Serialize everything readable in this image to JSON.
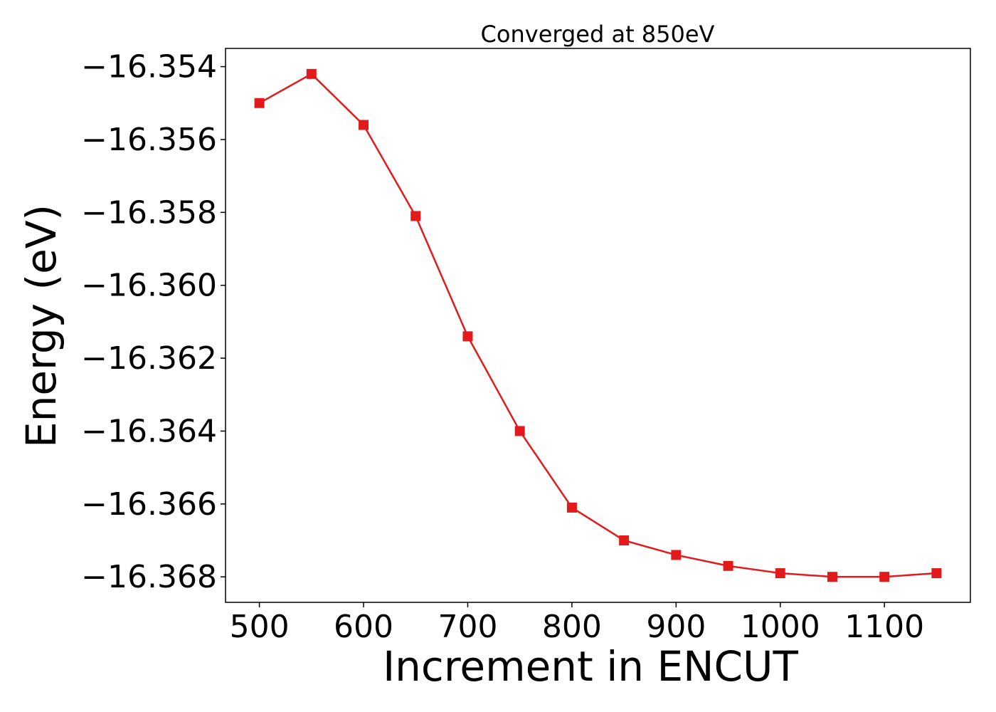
{
  "chart_data": {
    "type": "line",
    "title": "Converged at 850eV",
    "xlabel": "Increment in ENCUT",
    "ylabel": "Energy (eV)",
    "xlim": [
      467.5,
      1182.5
    ],
    "ylim": [
      -16.3687,
      -16.3535
    ],
    "xticks": [
      500,
      600,
      700,
      800,
      900,
      1000,
      1100
    ],
    "xtick_labels": [
      "500",
      "600",
      "700",
      "800",
      "900",
      "1000",
      "1100"
    ],
    "yticks": [
      -16.354,
      -16.356,
      -16.358,
      -16.36,
      -16.362,
      -16.364,
      -16.366,
      -16.368
    ],
    "ytick_labels": [
      "−16.354",
      "−16.356",
      "−16.358",
      "−16.360",
      "−16.362",
      "−16.364",
      "−16.366",
      "−16.368"
    ],
    "grid": false,
    "series": [
      {
        "color": "#e31a1c",
        "marker": "square",
        "x": [
          500,
          550,
          600,
          650,
          700,
          750,
          800,
          850,
          900,
          950,
          1000,
          1050,
          1100,
          1150
        ],
        "y": [
          -16.355,
          -16.3542,
          -16.3556,
          -16.3581,
          -16.3614,
          -16.364,
          -16.3661,
          -16.367,
          -16.3674,
          -16.3677,
          -16.3679,
          -16.368,
          -16.368,
          -16.3679
        ]
      }
    ]
  }
}
